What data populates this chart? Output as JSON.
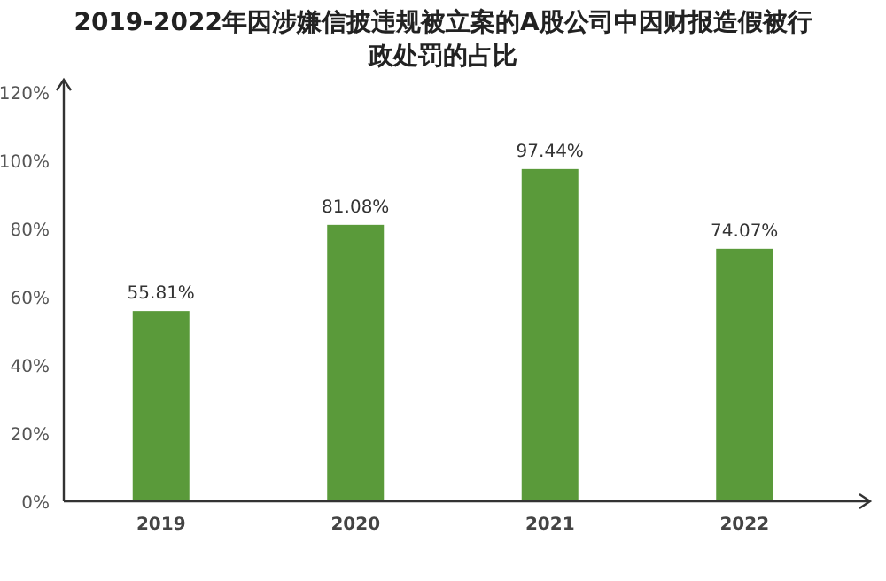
{
  "chart_data": {
    "type": "bar",
    "title": "2019-2022年因涉嫌信披违规被立案的A股公司中因财报造假被行政处罚的占比",
    "categories": [
      "2019",
      "2020",
      "2021",
      "2022"
    ],
    "values": [
      55.81,
      81.08,
      97.44,
      74.07
    ],
    "value_labels": [
      "55.81%",
      "81.08%",
      "97.44%",
      "74.07%"
    ],
    "color": "#5a9a3a",
    "ylim": [
      0,
      120
    ],
    "yticks": [
      {
        "value": 0,
        "label": "0%"
      },
      {
        "value": 20,
        "label": "20%"
      },
      {
        "value": 40,
        "label": "40%"
      },
      {
        "value": 60,
        "label": "60%"
      },
      {
        "value": 80,
        "label": "80%"
      },
      {
        "value": 100,
        "label": "100%"
      },
      {
        "value": 120,
        "label": "120%"
      }
    ],
    "grid": false
  }
}
